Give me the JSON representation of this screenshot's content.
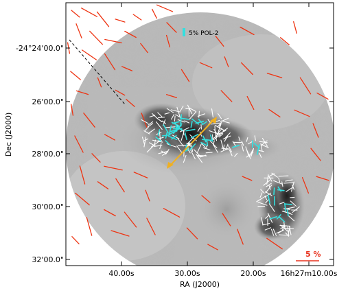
{
  "axes": {
    "xlabel": "RA (J2000)",
    "ylabel": "Dec (J2000)",
    "xticks": [
      "40.00s",
      "30.00s",
      "20.00s",
      "16h27m10.00s"
    ],
    "yticks": [
      "-24°24'00.0\"",
      "26'00.0\"",
      "28'00.0\"",
      "30'00.0\"",
      "32'00.0\""
    ]
  },
  "legend": {
    "label": "5% POL-2",
    "swatch_color": "#33e0e0"
  },
  "scale_bar": {
    "label": "5 %",
    "color": "#e8321e"
  },
  "colors": {
    "red_vectors": "#ee3311",
    "cyan_vectors": "#33e0e0",
    "white_vectors": "#ffffff",
    "outflow_arrow": "#f0b020"
  }
}
